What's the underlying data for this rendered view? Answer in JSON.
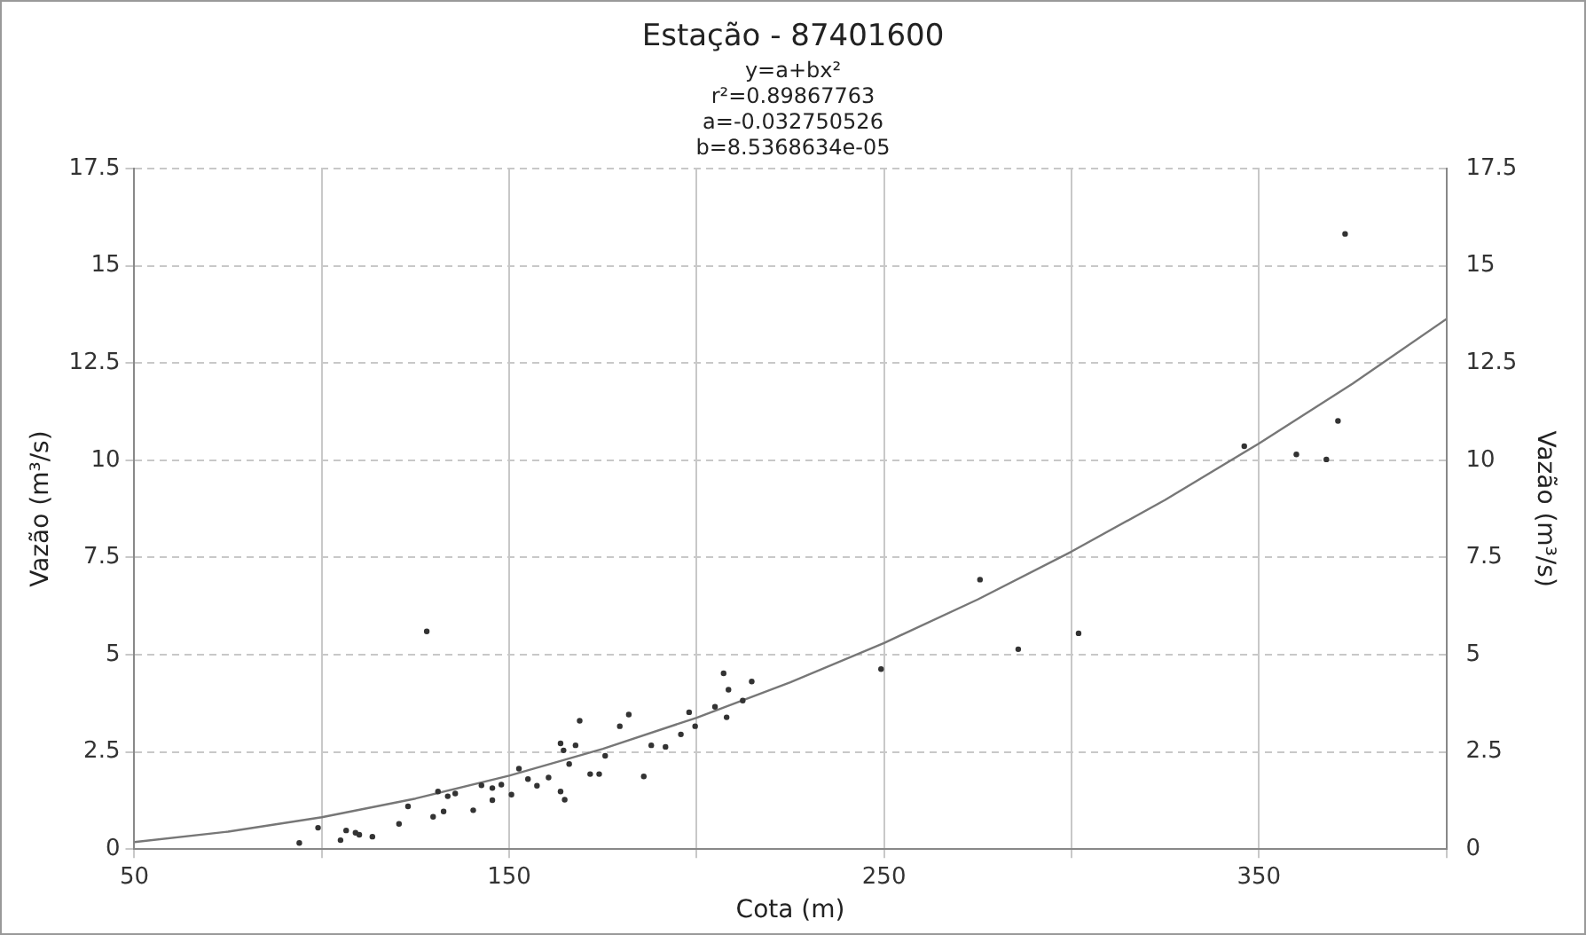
{
  "chart_data": {
    "type": "scatter",
    "title": "Estação - 87401600",
    "subtitle": "y=a+bx²",
    "annotations": [
      "r²=0.89867763",
      "a=-0.032750526",
      "b=8.5368634e-05"
    ],
    "xlabel": "Cota (m)",
    "ylabel": "Vazão (m³/s)",
    "y2label": "Vazão (m³/s)",
    "xlim": [
      50,
      400
    ],
    "xticks": [
      50,
      {
        "value": 100,
        "label": null
      },
      150,
      {
        "value": 200,
        "label": null
      },
      250,
      {
        "value": 300,
        "label": null
      },
      350,
      {
        "value": 400,
        "label": null
      }
    ],
    "ylim": [
      0,
      17.5
    ],
    "yticks": [
      0,
      2.5,
      5,
      7.5,
      10,
      12.5,
      15,
      17.5
    ],
    "y2lim": [
      0,
      17.5
    ],
    "y2ticks": [
      0,
      2.5,
      5,
      7.5,
      10,
      12.5,
      15,
      17.5
    ],
    "grid": true,
    "legend": false,
    "series": [
      {
        "marker": "circle",
        "color": "#333333",
        "x": [
          94,
          99,
          105,
          106.5,
          109,
          110,
          113.5,
          120.6,
          123,
          128,
          129.7,
          131,
          132.5,
          133.6,
          135.6,
          140.4,
          142.6,
          145.5,
          145.5,
          147.9,
          150.6,
          152.6,
          155,
          157.4,
          160.5,
          163.7,
          164.8,
          163.7,
          164.5,
          166,
          167.7,
          168.8,
          171.6,
          174,
          175.6,
          179.5,
          181.9,
          185.9,
          187.9,
          191.7,
          195.8,
          198,
          199.6,
          204.9,
          207.2,
          208.5,
          208,
          212.3,
          214.7,
          249.2,
          275.6,
          285.8,
          301.9,
          346.1,
          360,
          368,
          371.1,
          373
        ],
        "values": [
          0.16,
          0.55,
          0.23,
          0.48,
          0.42,
          0.37,
          0.32,
          0.65,
          1.1,
          5.6,
          0.83,
          1.48,
          0.97,
          1.36,
          1.43,
          1.0,
          1.64,
          1.26,
          1.57,
          1.66,
          1.4,
          2.07,
          1.8,
          1.63,
          1.84,
          1.48,
          1.27,
          2.72,
          2.54,
          2.19,
          2.67,
          3.3,
          1.93,
          1.93,
          2.4,
          3.16,
          3.46,
          1.87,
          2.67,
          2.63,
          2.95,
          3.52,
          3.16,
          3.66,
          4.52,
          4.1,
          3.39,
          3.82,
          4.31,
          4.63,
          6.93,
          5.14,
          5.55,
          10.36,
          10.15,
          10.02,
          11.01,
          15.82
        ]
      },
      {
        "type": "line",
        "marker": "none",
        "color": "#777777",
        "x": [
          50,
          75,
          100,
          125,
          150,
          175,
          200,
          225,
          250,
          275,
          300,
          325,
          350,
          375,
          400
        ],
        "values": [
          0.18,
          0.45,
          0.82,
          1.3,
          1.89,
          2.58,
          3.38,
          4.29,
          5.3,
          6.42,
          7.65,
          8.98,
          10.43,
          11.97,
          13.63
        ]
      }
    ]
  }
}
